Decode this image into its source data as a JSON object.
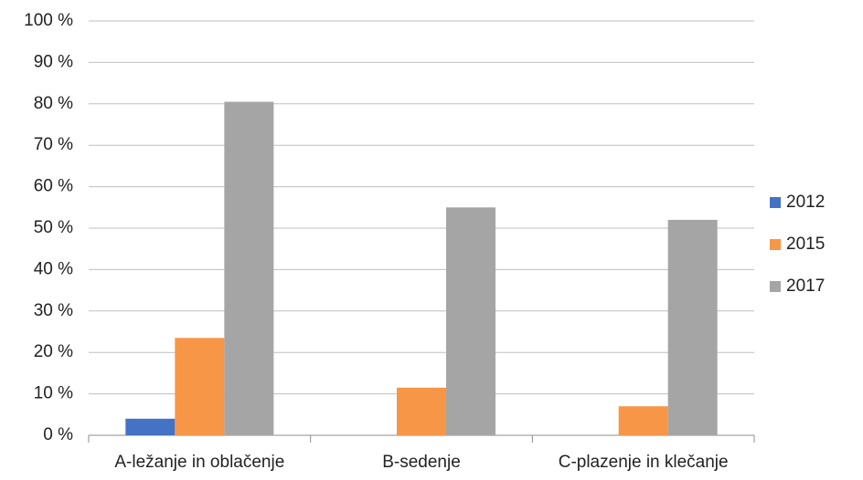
{
  "chart_data": {
    "type": "bar",
    "categories": [
      "A-ležanje in oblačenje",
      "B-sedenje",
      "C-plazenje in klečanje"
    ],
    "series": [
      {
        "name": "2012",
        "color": "#4472c4",
        "values": [
          4,
          0,
          0
        ]
      },
      {
        "name": "2015",
        "color": "#f79646",
        "values": [
          23.5,
          11.5,
          7
        ]
      },
      {
        "name": "2017",
        "color": "#a5a5a5",
        "values": [
          80.5,
          55,
          52
        ]
      }
    ],
    "ylim": [
      0,
      100
    ],
    "yticks": [
      {
        "value": 0,
        "label": "0 %"
      },
      {
        "value": 10,
        "label": "10 %"
      },
      {
        "value": 20,
        "label": "20 %"
      },
      {
        "value": 30,
        "label": "30 %"
      },
      {
        "value": 40,
        "label": "40 %"
      },
      {
        "value": 50,
        "label": "50 %"
      },
      {
        "value": 60,
        "label": "60 %"
      },
      {
        "value": 70,
        "label": "70 %"
      },
      {
        "value": 80,
        "label": "80 %"
      },
      {
        "value": 90,
        "label": "90 %"
      },
      {
        "value": 100,
        "label": "100 %"
      }
    ],
    "grid": true,
    "legend": "right"
  }
}
